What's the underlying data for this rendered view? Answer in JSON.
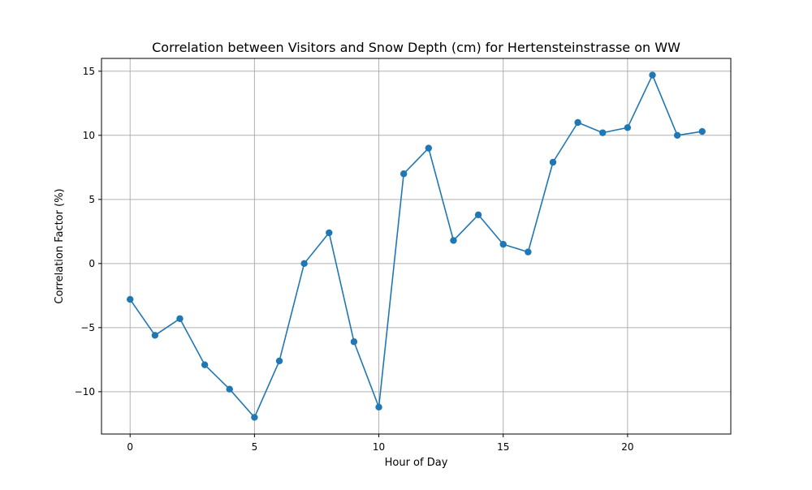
{
  "chart_data": {
    "type": "line",
    "title": "Correlation between Visitors and Snow Depth (cm) for Hertensteinstrasse on WW",
    "xlabel": "Hour of Day",
    "ylabel": "Correlation Factor (%)",
    "xlim": [
      -1.15,
      24.15
    ],
    "ylim": [
      -13.3,
      16.0
    ],
    "xticks": [
      0,
      5,
      10,
      15,
      20
    ],
    "yticks": [
      -10,
      -5,
      0,
      5,
      10,
      15
    ],
    "xtick_labels": [
      "0",
      "5",
      "10",
      "15",
      "20"
    ],
    "ytick_labels": [
      "−10",
      "−5",
      "0",
      "5",
      "10",
      "15"
    ],
    "grid": true,
    "line_color": "#1f77b4",
    "marker": "circle",
    "x": [
      0,
      1,
      2,
      3,
      4,
      5,
      6,
      7,
      8,
      9,
      10,
      11,
      12,
      13,
      14,
      15,
      16,
      17,
      18,
      19,
      20,
      21,
      22,
      23
    ],
    "y": [
      -2.8,
      -5.6,
      -4.3,
      -7.9,
      -9.8,
      -12.0,
      -7.6,
      0.0,
      2.4,
      -6.1,
      -11.2,
      7.0,
      9.0,
      1.8,
      3.8,
      1.5,
      0.9,
      7.9,
      11.0,
      10.2,
      10.6,
      14.7,
      10.0,
      10.3
    ]
  }
}
